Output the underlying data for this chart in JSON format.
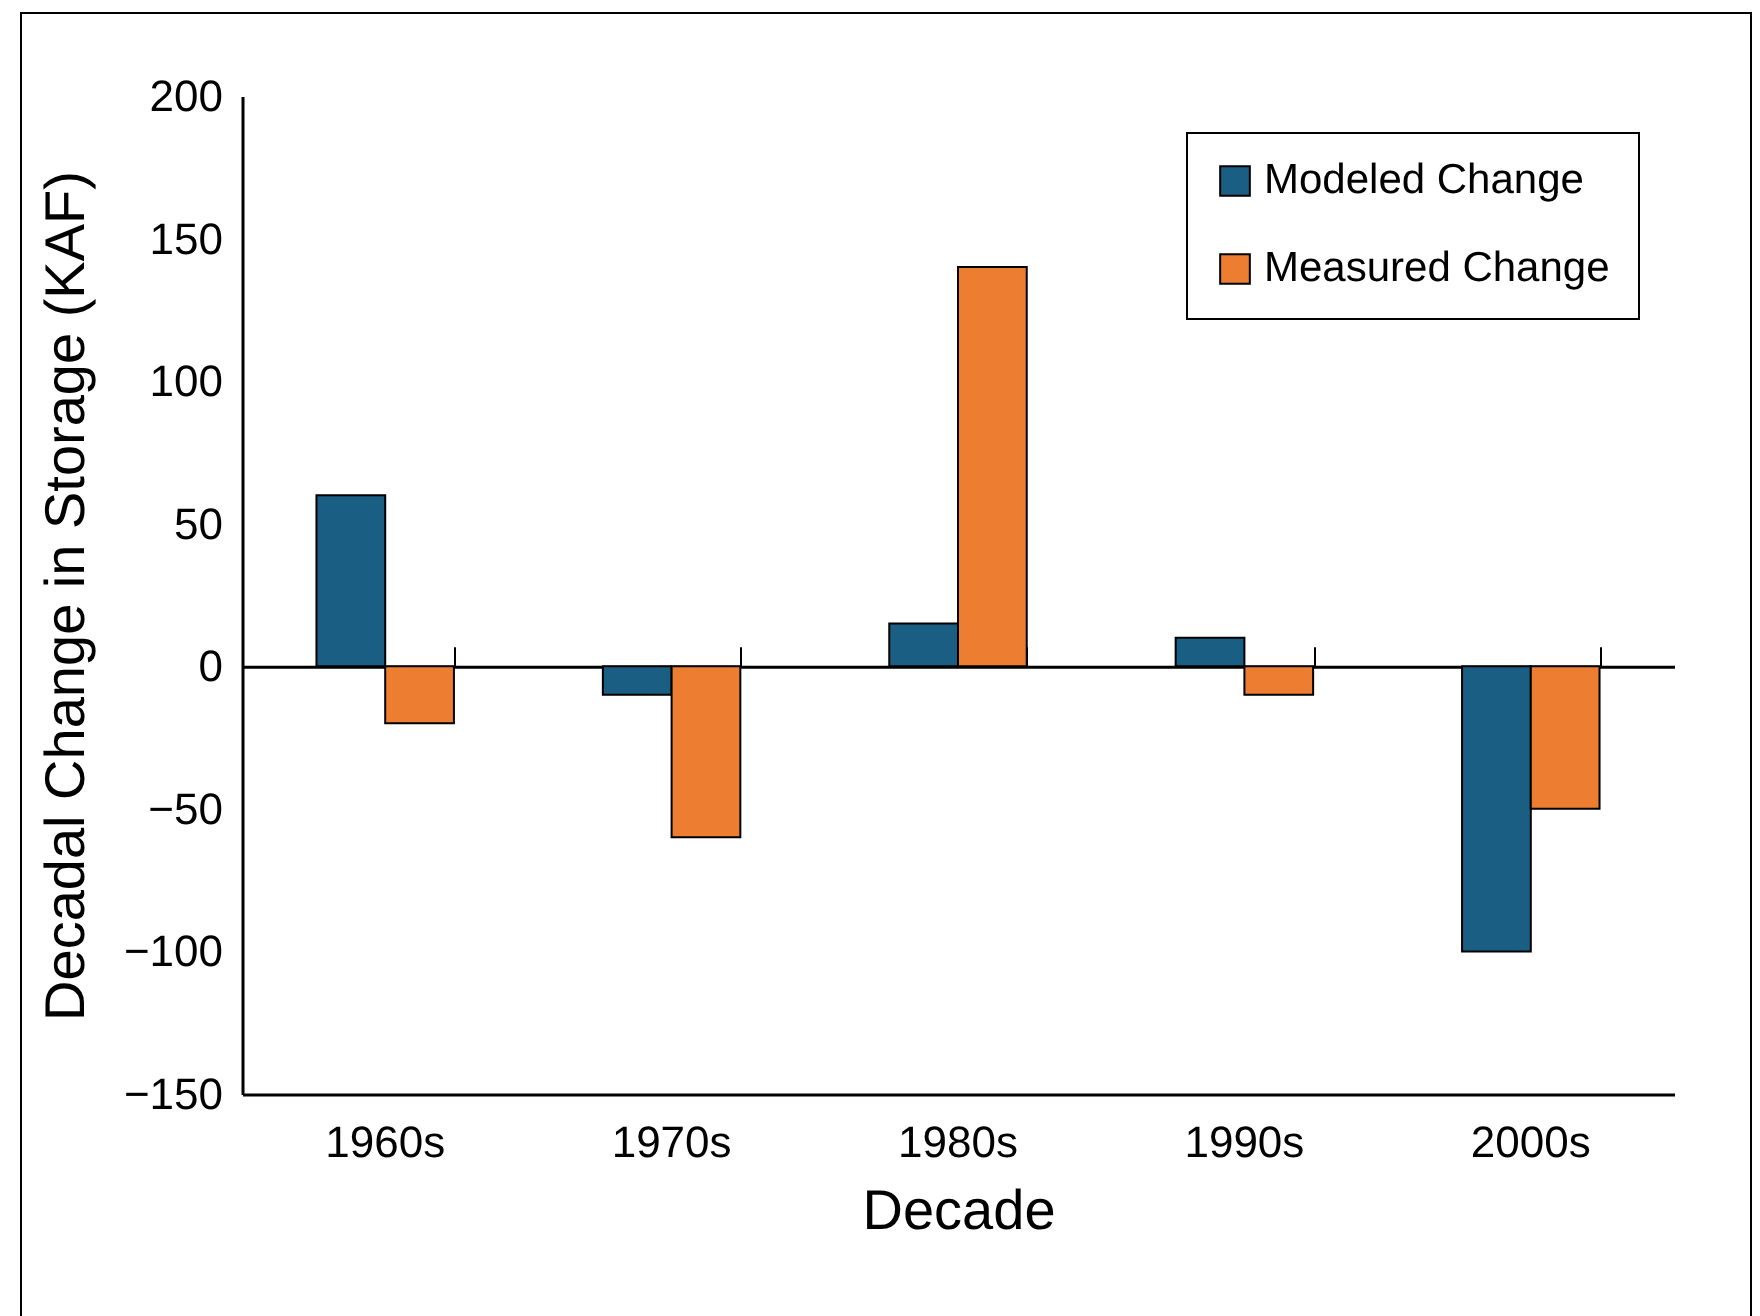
{
  "chart_data": {
    "type": "bar",
    "xlabel": "Decade",
    "ylabel": "Decadal Change in Storage (KAF)",
    "categories": [
      "1960s",
      "1970s",
      "1980s",
      "1990s",
      "2000s"
    ],
    "series": [
      {
        "name": "Modeled Change",
        "color": "#1b5e84",
        "values": [
          60,
          -10,
          15,
          10,
          -100
        ]
      },
      {
        "name": "Measured Change",
        "color": "#ed7d31",
        "values": [
          -20,
          -60,
          140,
          -10,
          -50
        ]
      }
    ],
    "ylim": [
      -150,
      200
    ],
    "yticks": [
      -150,
      -100,
      -50,
      0,
      50,
      100,
      150,
      200
    ],
    "legend": "top right"
  }
}
